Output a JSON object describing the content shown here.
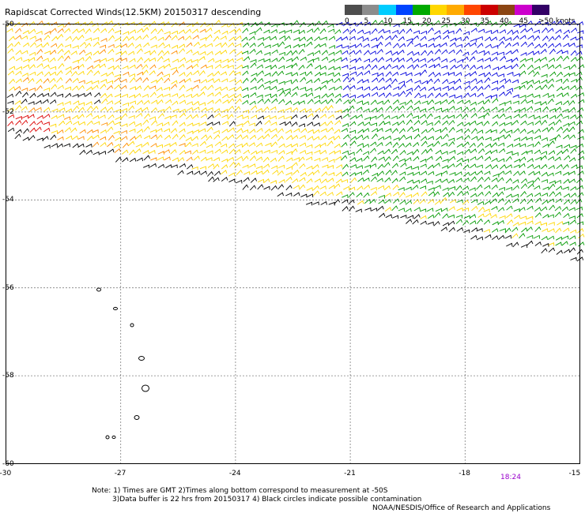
{
  "title": "Rapidscat Corrected Winds(12.5KM) 20150317 descending",
  "legend": {
    "labels": [
      "0",
      "5",
      "10",
      "15",
      "20",
      "25",
      "30",
      "35",
      "40",
      "45",
      ">50 knots"
    ],
    "colors": [
      "#4d4d4d",
      "#8c8c8c",
      "#00ccff",
      "#0044ff",
      "#00aa00",
      "#ffd700",
      "#ffaa00",
      "#ff4500",
      "#cc0000",
      "#8b4513",
      "#cc00cc",
      "#330066"
    ]
  },
  "map": {
    "lat_labels": [
      "-50",
      "-52",
      "-54",
      "-56",
      "-58",
      "-60"
    ],
    "lon_labels": [
      "-30",
      "-27",
      "-24",
      "-21",
      "-18",
      "-15"
    ],
    "grid": "dotted",
    "time_label": "18:24",
    "wind_colors": {
      "calm": "#000000",
      "light": "#0000dd",
      "moderate": "#009900",
      "fresh": "#ffd700",
      "strong": "#ff8c00",
      "gale": "#dd0000"
    }
  },
  "notes": {
    "line1": "Note: 1) Times are GMT 2)Times along bottom correspond to measurement at -50S",
    "line2": "3)Data buffer is 22 hrs from 20150317 4) Black circles indicate possible contamination",
    "line3": "NOAA/NESDIS/Office of Research and Applications"
  }
}
